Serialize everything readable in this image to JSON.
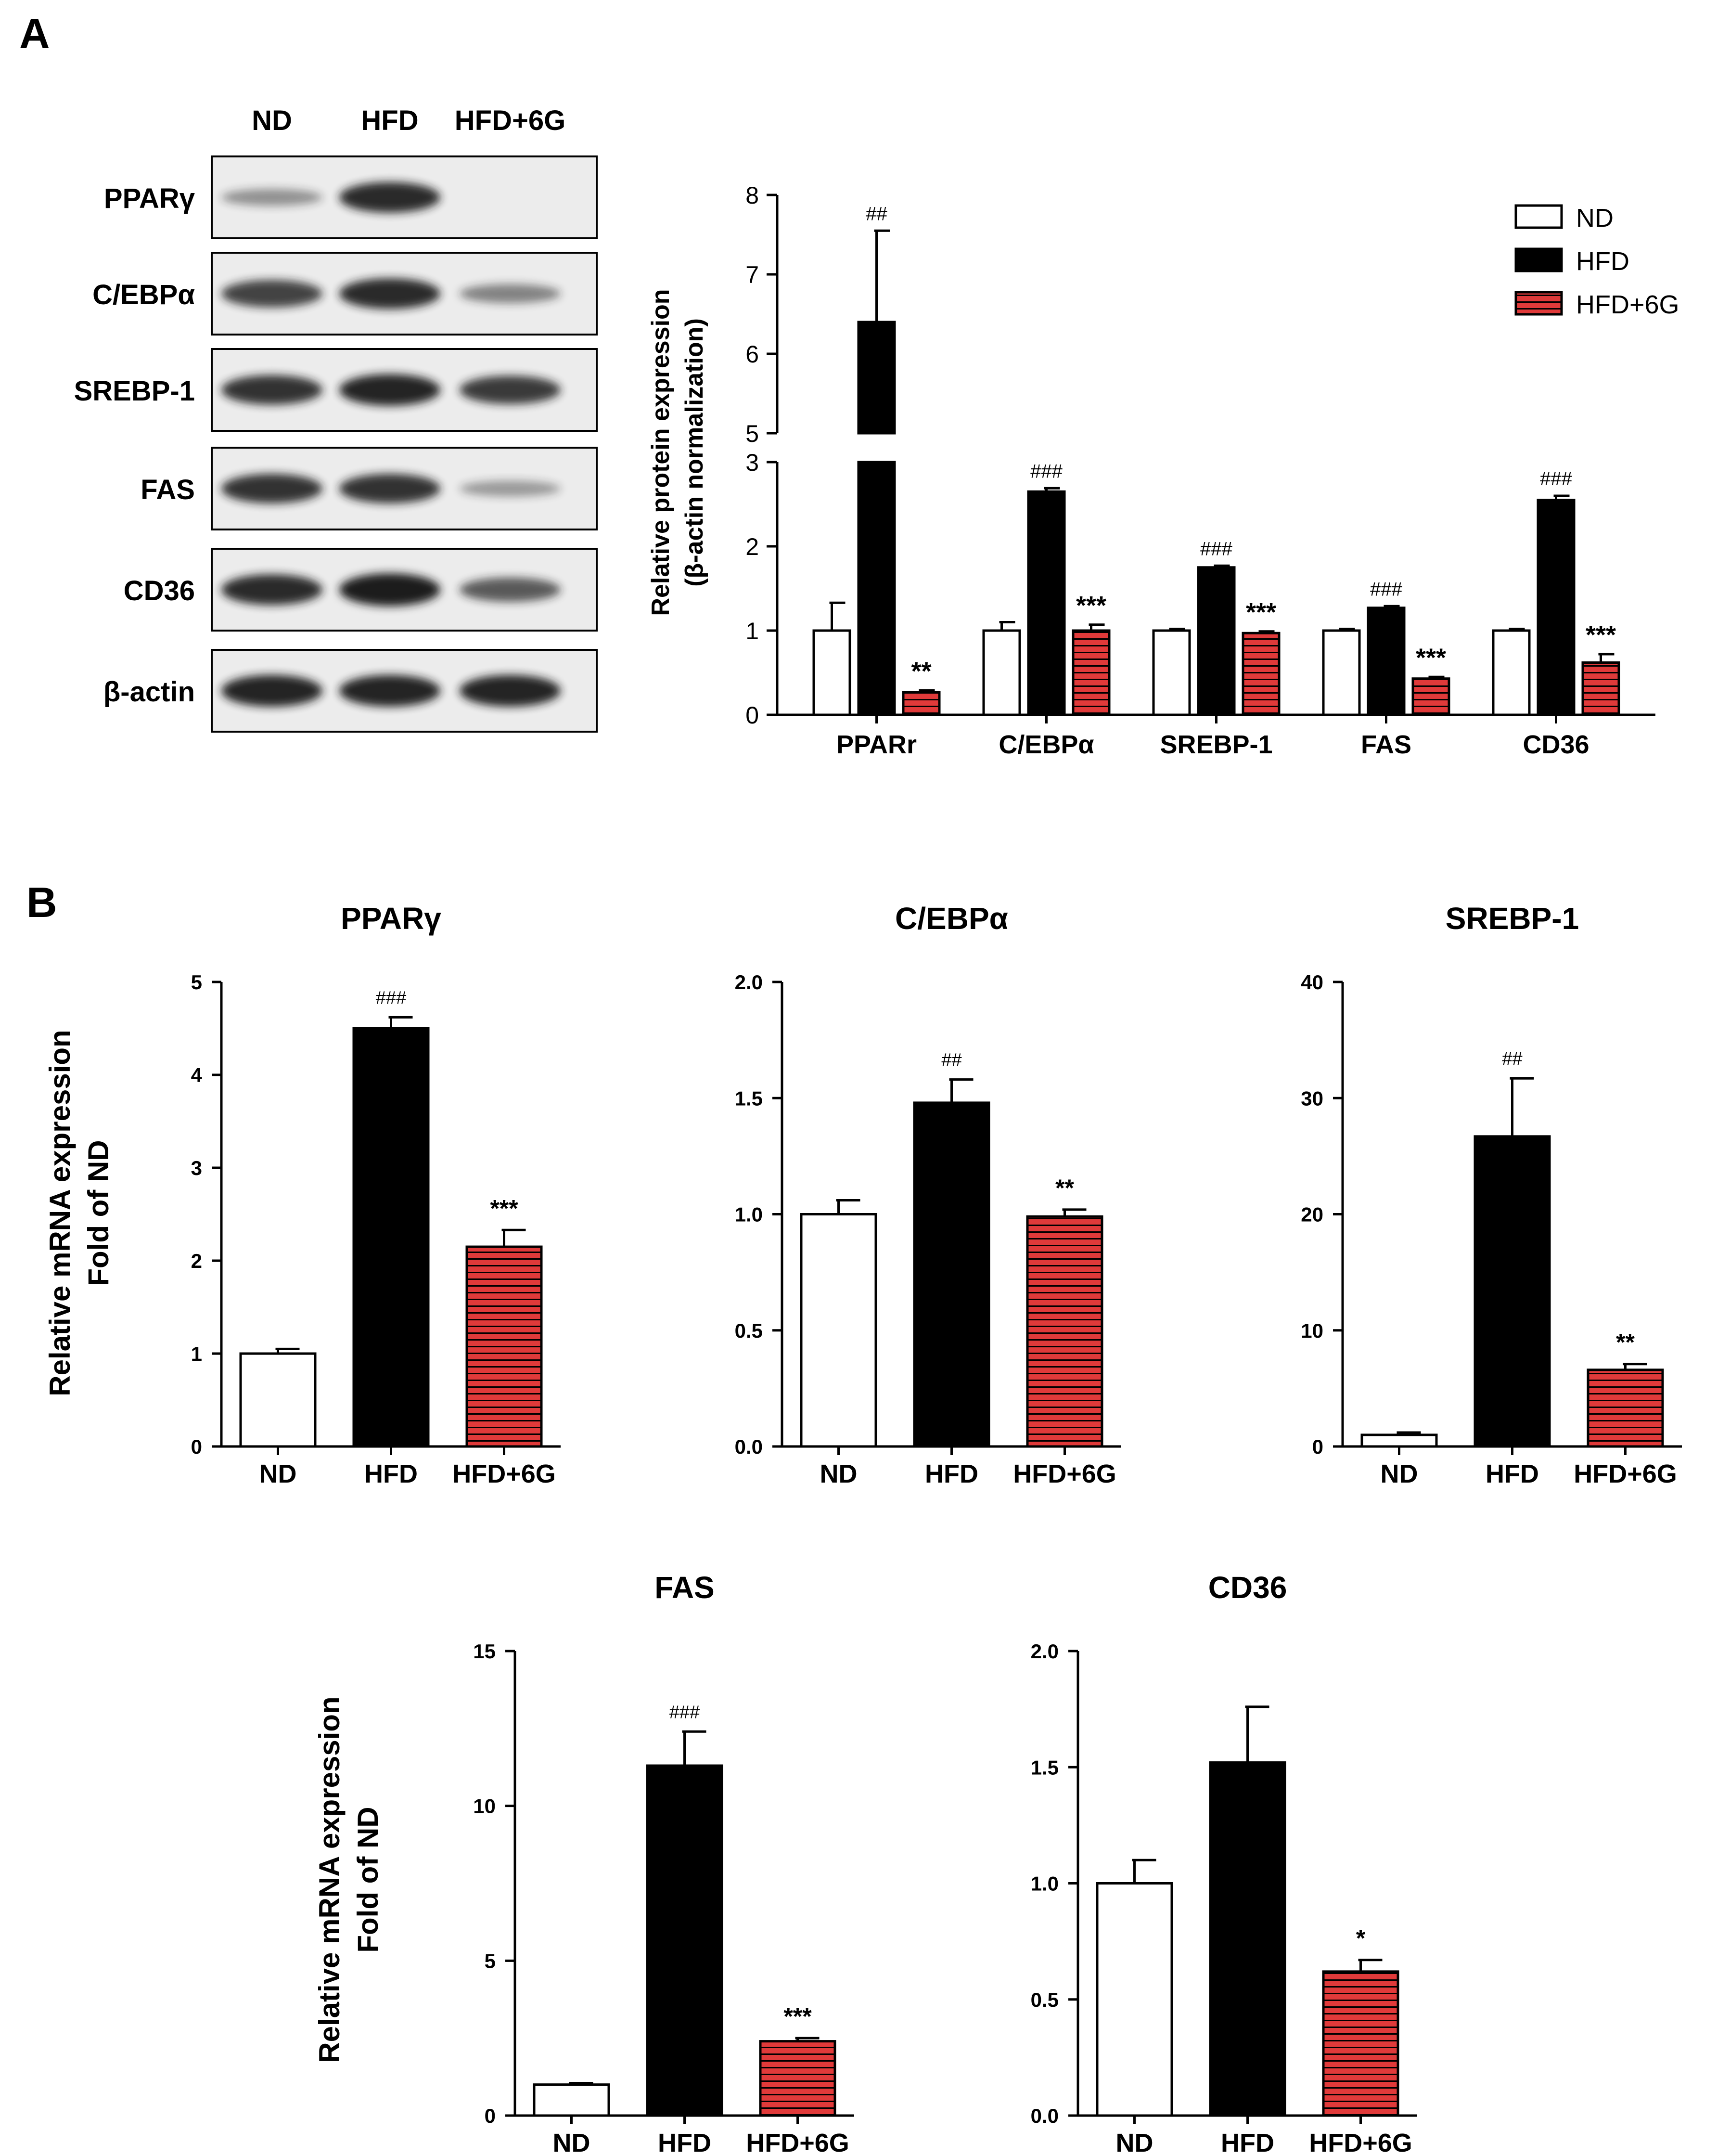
{
  "panel_labels": [
    "A",
    "B"
  ],
  "colors": {
    "nd_fill": "#ffffff",
    "hfd_fill": "#000000",
    "hfd6g_fill": "#e03a3a",
    "hfd6g_stripe": "#000000",
    "blot_bg": "#ececec",
    "band": "#1a1a1a"
  },
  "blot": {
    "lane_labels": [
      "ND",
      "HFD",
      "HFD+6G"
    ],
    "rows": [
      {
        "label": "PPARγ",
        "band_intensity": [
          0.25,
          0.9,
          0.0
        ]
      },
      {
        "label": "C/EBPα",
        "band_intensity": [
          0.75,
          0.9,
          0.35
        ]
      },
      {
        "label": "SREBP-1",
        "band_intensity": [
          0.85,
          0.95,
          0.8
        ]
      },
      {
        "label": "FAS",
        "band_intensity": [
          0.85,
          0.85,
          0.2
        ]
      },
      {
        "label": "CD36",
        "band_intensity": [
          0.9,
          1.0,
          0.6
        ]
      },
      {
        "label": "β-actin",
        "band_intensity": [
          0.95,
          0.95,
          0.95
        ]
      }
    ]
  },
  "chart_data": [
    {
      "type": "bar",
      "id": "protein",
      "ylabel_lines": [
        "Relative protein expression",
        "(β-actin normalization)"
      ],
      "categories": [
        "PPARr",
        "C/EBPα",
        "SREBP-1",
        "FAS",
        "CD36"
      ],
      "broken_axis": {
        "lower": [
          0,
          3
        ],
        "upper": [
          5,
          8
        ]
      },
      "yticks_lower": [
        "0",
        "1",
        "2",
        "3"
      ],
      "yticks_upper": [
        "5",
        "6",
        "7",
        "8"
      ],
      "legend": [
        "ND",
        "HFD",
        "HFD+6G"
      ],
      "legend_position": "top-right",
      "series": [
        {
          "name": "ND",
          "values": [
            1.0,
            1.0,
            1.0,
            1.0,
            1.0
          ],
          "errors": [
            0.33,
            0.1,
            0.02,
            0.02,
            0.02
          ],
          "marks": [
            "",
            "",
            "",
            "",
            ""
          ]
        },
        {
          "name": "HFD",
          "values": [
            6.4,
            2.65,
            1.75,
            1.27,
            2.55
          ],
          "errors": [
            1.15,
            0.04,
            0.02,
            0.02,
            0.05
          ],
          "marks": [
            "##",
            "###",
            "###",
            "###",
            "###"
          ]
        },
        {
          "name": "HFD+6G",
          "values": [
            0.27,
            1.0,
            0.97,
            0.43,
            0.62
          ],
          "errors": [
            0.02,
            0.07,
            0.02,
            0.02,
            0.1
          ],
          "marks": [
            "**",
            "***",
            "***",
            "***",
            "***"
          ]
        }
      ]
    },
    {
      "type": "bar",
      "id": "m_ppar",
      "title": "PPARγ",
      "categories": [
        "ND",
        "HFD",
        "HFD+6G"
      ],
      "ylim": [
        0,
        5
      ],
      "yticks": [
        "0",
        "1",
        "2",
        "3",
        "4",
        "5"
      ],
      "values": [
        1.0,
        4.5,
        2.15
      ],
      "errors": [
        0.05,
        0.12,
        0.18
      ],
      "marks": [
        "",
        "###",
        "***"
      ]
    },
    {
      "type": "bar",
      "id": "m_cebp",
      "title": "C/EBPα",
      "categories": [
        "ND",
        "HFD",
        "HFD+6G"
      ],
      "ylim": [
        0,
        2.0
      ],
      "yticks": [
        "0.0",
        "0.5",
        "1.0",
        "1.5",
        "2.0"
      ],
      "values": [
        1.0,
        1.48,
        0.99
      ],
      "errors": [
        0.06,
        0.1,
        0.03
      ],
      "marks": [
        "",
        "##",
        "**"
      ]
    },
    {
      "type": "bar",
      "id": "m_srebp",
      "title": "SREBP-1",
      "categories": [
        "ND",
        "HFD",
        "HFD+6G"
      ],
      "ylim": [
        0,
        40
      ],
      "yticks": [
        "0",
        "10",
        "20",
        "30",
        "40"
      ],
      "values": [
        1.0,
        26.7,
        6.6
      ],
      "errors": [
        0.2,
        5.0,
        0.5
      ],
      "marks": [
        "",
        "##",
        "**"
      ]
    },
    {
      "type": "bar",
      "id": "m_fas",
      "title": "FAS",
      "categories": [
        "ND",
        "HFD",
        "HFD+6G"
      ],
      "ylim": [
        0,
        15
      ],
      "yticks": [
        "0",
        "5",
        "10",
        "15"
      ],
      "values": [
        1.0,
        11.3,
        2.4
      ],
      "errors": [
        0.05,
        1.1,
        0.1
      ],
      "marks": [
        "",
        "###",
        "***"
      ]
    },
    {
      "type": "bar",
      "id": "m_cd36",
      "title": "CD36",
      "categories": [
        "ND",
        "HFD",
        "HFD+6G"
      ],
      "ylim": [
        0,
        2.0
      ],
      "yticks": [
        "0.0",
        "0.5",
        "1.0",
        "1.5",
        "2.0"
      ],
      "values": [
        1.0,
        1.52,
        0.62
      ],
      "errors": [
        0.1,
        0.24,
        0.05
      ],
      "marks": [
        "",
        "",
        "*"
      ]
    }
  ],
  "mrna_ylabel_lines": [
    "Relative mRNA expression",
    "Fold of ND"
  ]
}
